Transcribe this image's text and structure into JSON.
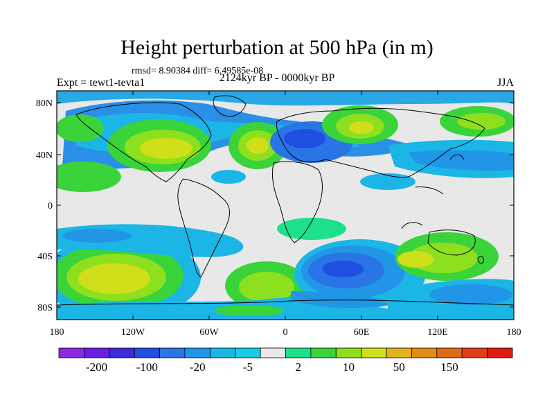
{
  "title": "Height perturbation at 500 hPa (in m)",
  "stats_text": "rmsd= 8.90384 diff= 6.49585e-08",
  "experiment": "Expt = tewt1-tevta1",
  "period": "2124kyr BP - 0000kyr BP",
  "season": "JJA",
  "lat_ticks": [
    "80N",
    "40N",
    "0",
    "40S",
    "80S"
  ],
  "lon_ticks": [
    "180",
    "120W",
    "60W",
    "0",
    "60E",
    "120E",
    "180"
  ],
  "colorbar": {
    "colors": [
      "#8a2be2",
      "#6a1ee0",
      "#3e2bd6",
      "#1e4fe0",
      "#2a75e6",
      "#2196e6",
      "#1bb6e6",
      "#18cde6",
      "#e8e8e8",
      "#1ee08c",
      "#3ad43a",
      "#8ee01e",
      "#cfe01a",
      "#e0b41a",
      "#e08c18",
      "#e06a18",
      "#e04018",
      "#e01a10"
    ],
    "labels": [
      "-200",
      "-100",
      "-20",
      "-5",
      "2",
      "10",
      "50",
      "150"
    ]
  }
}
